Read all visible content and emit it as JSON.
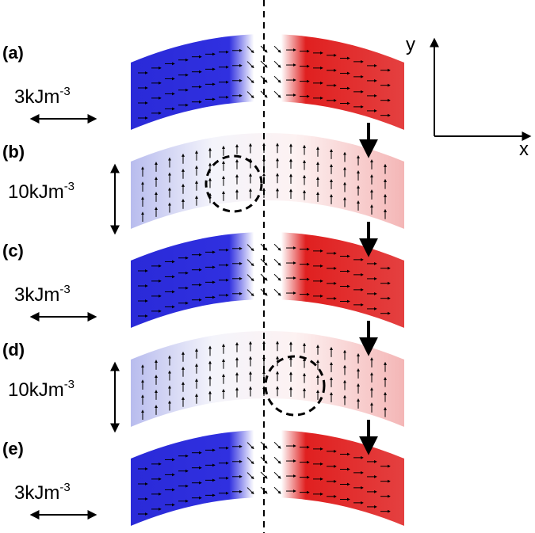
{
  "panels": [
    {
      "label": "(a)",
      "scale": "3kJm",
      "scale_exponent": "-3"
    },
    {
      "label": "(b)",
      "scale": "10kJm",
      "scale_exponent": "-3"
    },
    {
      "label": "(c)",
      "scale": "3kJm",
      "scale_exponent": "-3"
    },
    {
      "label": "(d)",
      "scale": "10kJm",
      "scale_exponent": "-3"
    },
    {
      "label": "(e)",
      "scale": "3kJm",
      "scale_exponent": "-3"
    }
  ],
  "axes": {
    "x": "x",
    "y": "y"
  }
}
